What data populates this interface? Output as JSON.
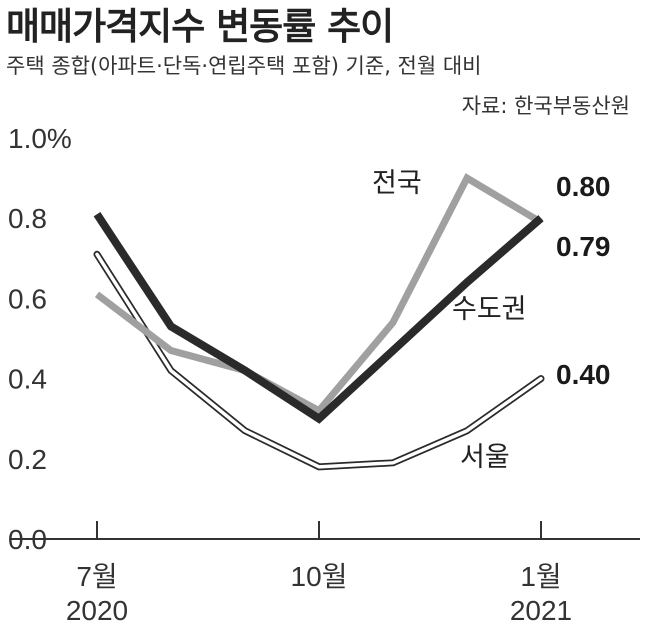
{
  "title": "매매가격지수 변동률 추이",
  "subtitle": "주택 종합(아파트·단독·연립주택 포함) 기준, 전월 대비",
  "source": "자료: 한국부동산원",
  "chart_data": {
    "type": "line",
    "y_unit_label": "1.0%",
    "yticks": [
      "1.0%",
      "0.8",
      "0.6",
      "0.4",
      "0.2",
      "0.0"
    ],
    "ylim": [
      0,
      1.0
    ],
    "x_points": [
      "2020-07",
      "2020-08",
      "2020-09",
      "2020-10",
      "2020-11",
      "2020-12",
      "2021-01"
    ],
    "x_tick_labels": [
      {
        "x": "2020-07",
        "month": "7월",
        "year": "2020"
      },
      {
        "x": "2020-10",
        "month": "10월",
        "year": ""
      },
      {
        "x": "2021-01",
        "month": "1월",
        "year": "2021"
      }
    ],
    "series": [
      {
        "name": "전국",
        "color": "#a0a0a0",
        "style": "gray-solid",
        "values": [
          0.61,
          0.47,
          0.42,
          0.32,
          0.54,
          0.9,
          0.79
        ]
      },
      {
        "name": "수도권",
        "color": "#2a2a2a",
        "style": "dark-thick",
        "values": [
          0.81,
          0.53,
          0.42,
          0.3,
          0.47,
          0.64,
          0.8
        ]
      },
      {
        "name": "서울",
        "color": "#2a2a2a",
        "style": "outlined-white",
        "values": [
          0.71,
          0.42,
          0.27,
          0.18,
          0.19,
          0.27,
          0.4
        ]
      }
    ],
    "end_labels": [
      {
        "series": "수도권",
        "text": "0.80"
      },
      {
        "series": "전국",
        "text": "0.79"
      },
      {
        "series": "서울",
        "text": "0.40"
      }
    ],
    "grid": false
  }
}
